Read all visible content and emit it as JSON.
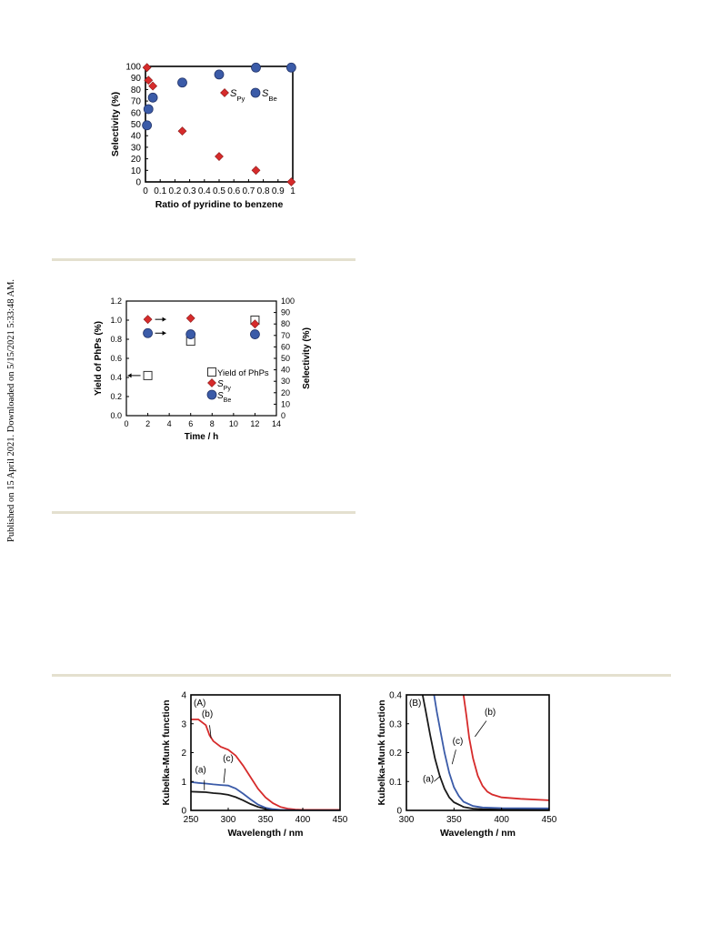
{
  "side_note": "Published on 15 April 2021. Downloaded on 5/15/2021 5:33:48 AM.",
  "colors": {
    "red": "#d62b2b",
    "blue": "#3b5ba8",
    "black": "#1a1a1a",
    "rule": "#e4e0cf"
  },
  "chart_data": [
    {
      "type": "scatter",
      "xlabel": "Ratio of pyridine to benzene",
      "ylabel": "Selectivity (%)",
      "xlim": [
        0,
        1
      ],
      "ylim": [
        0,
        100
      ],
      "x_ticks": [
        "0",
        "0.1",
        "0.2",
        "0.3",
        "0.4",
        "0.5",
        "0.6",
        "0.7",
        "0.8",
        "0.9",
        "1"
      ],
      "y_ticks": [
        "0",
        "10",
        "20",
        "30",
        "40",
        "50",
        "60",
        "70",
        "80",
        "90",
        "100"
      ],
      "series": [
        {
          "name": "S_Py",
          "label_main": "S",
          "label_sub": "Py",
          "marker": "diamond",
          "color": "#d62b2b",
          "x": [
            0.01,
            0.02,
            0.05,
            0.25,
            0.5,
            0.75,
            0.99
          ],
          "y": [
            99,
            88,
            83,
            44,
            22,
            10,
            0
          ]
        },
        {
          "name": "S_Be",
          "label_main": "S",
          "label_sub": "Be",
          "marker": "circle",
          "color": "#3b5ba8",
          "x": [
            0.01,
            0.02,
            0.05,
            0.25,
            0.5,
            0.75,
            0.99
          ],
          "y": [
            49,
            63,
            73,
            86,
            93,
            99,
            99
          ]
        }
      ],
      "legend": "inside-right"
    },
    {
      "type": "scatter",
      "xlabel": "Time / h",
      "ylabel_left": "Yield of PhPs (%)",
      "ylabel_right": "Selectivity (%)",
      "xlim": [
        0,
        14
      ],
      "ylim_left": [
        0,
        1.2
      ],
      "ylim_right": [
        0,
        100
      ],
      "x_ticks": [
        "0",
        "2",
        "4",
        "6",
        "8",
        "10",
        "12",
        "14"
      ],
      "y_ticks_left": [
        "0.0",
        "0.2",
        "0.4",
        "0.6",
        "0.8",
        "1.0",
        "1.2"
      ],
      "y_ticks_right": [
        "0",
        "10",
        "20",
        "30",
        "40",
        "50",
        "60",
        "70",
        "80",
        "90",
        "100"
      ],
      "series": [
        {
          "name": "Yield of PhPs",
          "label_main": "Yield of PhPs",
          "label_sub": "",
          "marker": "square",
          "axis": "left",
          "color": "#ffffff",
          "x": [
            2,
            6,
            12
          ],
          "y": [
            0.42,
            0.78,
            1.0
          ]
        },
        {
          "name": "S_Py",
          "label_main": "S",
          "label_sub": "Py",
          "marker": "diamond",
          "axis": "right",
          "color": "#d62b2b",
          "x": [
            2,
            6,
            12
          ],
          "y": [
            84,
            85,
            80
          ]
        },
        {
          "name": "S_Be",
          "label_main": "S",
          "label_sub": "Be",
          "marker": "circle",
          "axis": "right",
          "color": "#3b5ba8",
          "x": [
            2,
            6,
            12
          ],
          "y": [
            72,
            71,
            71
          ]
        }
      ],
      "legend": "inside-right"
    },
    {
      "type": "line",
      "panel": "(A)",
      "xlabel": "Wavelength / nm",
      "ylabel": "Kubelka-Munk function",
      "xlim": [
        250,
        450
      ],
      "ylim": [
        0,
        4
      ],
      "x_ticks": [
        "250",
        "300",
        "350",
        "400",
        "450"
      ],
      "y_ticks": [
        "0",
        "1",
        "2",
        "3",
        "4"
      ],
      "series": [
        {
          "name": "(a)",
          "color": "#1a1a1a",
          "x": [
            250,
            260,
            270,
            280,
            290,
            300,
            310,
            320,
            330,
            340,
            350,
            360,
            370,
            380,
            400,
            450
          ],
          "y": [
            0.65,
            0.64,
            0.63,
            0.6,
            0.58,
            0.54,
            0.46,
            0.35,
            0.22,
            0.12,
            0.05,
            0.02,
            0.01,
            0.0,
            0.0,
            0.0
          ]
        },
        {
          "name": "(b)",
          "color": "#d62b2b",
          "x": [
            250,
            260,
            270,
            275,
            280,
            290,
            300,
            310,
            320,
            330,
            340,
            350,
            360,
            370,
            380,
            390,
            400,
            450
          ],
          "y": [
            3.15,
            3.15,
            2.95,
            2.6,
            2.4,
            2.2,
            2.1,
            1.9,
            1.55,
            1.15,
            0.75,
            0.45,
            0.25,
            0.12,
            0.06,
            0.03,
            0.02,
            0.02
          ]
        },
        {
          "name": "(c)",
          "color": "#3b5ba8",
          "x": [
            250,
            260,
            270,
            280,
            290,
            300,
            310,
            320,
            330,
            340,
            350,
            360,
            370,
            380,
            400,
            450
          ],
          "y": [
            0.98,
            0.95,
            0.93,
            0.9,
            0.88,
            0.86,
            0.76,
            0.58,
            0.38,
            0.2,
            0.09,
            0.04,
            0.02,
            0.01,
            0.0,
            0.0
          ]
        }
      ]
    },
    {
      "type": "line",
      "panel": "(B)",
      "xlabel": "Wavelength / nm",
      "ylabel": "Kubelka-Munk function",
      "xlim": [
        300,
        450
      ],
      "ylim": [
        0,
        0.4
      ],
      "x_ticks": [
        "300",
        "350",
        "400",
        "450"
      ],
      "y_ticks": [
        "0",
        "0.1",
        "0.2",
        "0.3",
        "0.4"
      ],
      "series": [
        {
          "name": "(a)",
          "color": "#1a1a1a",
          "x": [
            317,
            320,
            325,
            330,
            335,
            340,
            345,
            350,
            360,
            370,
            380,
            400,
            450
          ],
          "y": [
            0.4,
            0.35,
            0.26,
            0.18,
            0.12,
            0.075,
            0.045,
            0.028,
            0.012,
            0.006,
            0.004,
            0.003,
            0.003
          ]
        },
        {
          "name": "(b)",
          "color": "#d62b2b",
          "x": [
            360,
            363,
            366,
            370,
            375,
            380,
            385,
            390,
            400,
            420,
            450
          ],
          "y": [
            0.4,
            0.33,
            0.25,
            0.18,
            0.12,
            0.085,
            0.065,
            0.055,
            0.045,
            0.04,
            0.035
          ]
        },
        {
          "name": "(c)",
          "color": "#3b5ba8",
          "x": [
            329,
            332,
            336,
            340,
            345,
            350,
            355,
            360,
            370,
            380,
            400,
            450
          ],
          "y": [
            0.4,
            0.34,
            0.27,
            0.2,
            0.13,
            0.08,
            0.05,
            0.03,
            0.015,
            0.01,
            0.008,
            0.007
          ]
        }
      ]
    }
  ]
}
